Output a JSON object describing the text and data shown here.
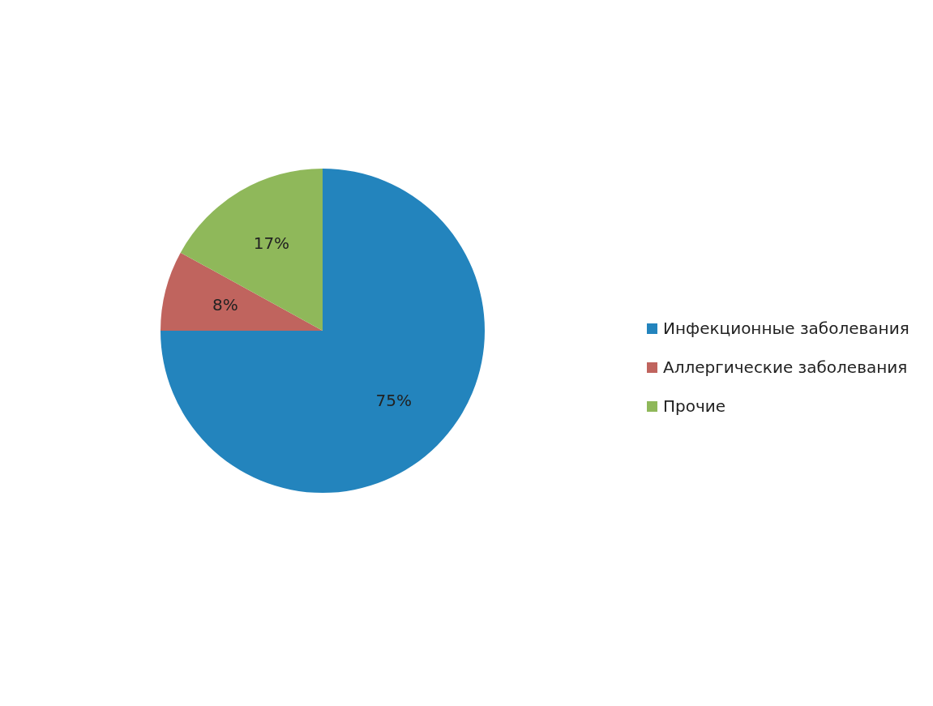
{
  "chart_data": {
    "type": "pie",
    "categories": [
      "Инфекционные заболевания",
      "Аллергические заболевания",
      "Прочие"
    ],
    "values": [
      75,
      8,
      17
    ],
    "colors": [
      "#2384bd",
      "#c0645e",
      "#8fb85a"
    ],
    "value_labels": [
      "75%",
      "8%",
      "17%"
    ],
    "legend": "right"
  }
}
